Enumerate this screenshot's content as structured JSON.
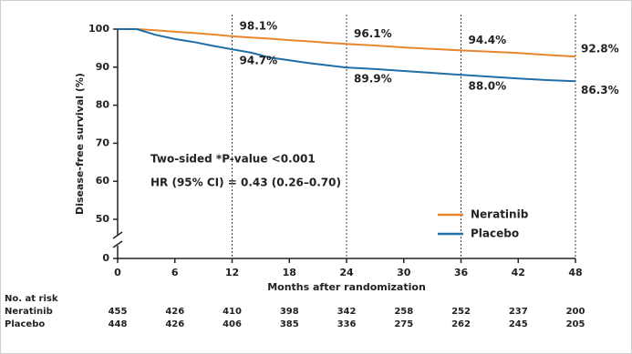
{
  "chart_data": {
    "type": "line",
    "xlabel": "Months after randomization",
    "ylabel": "Disease-free survival (%)",
    "x": [
      0,
      2,
      4,
      6,
      8,
      10,
      12,
      14,
      16,
      18,
      20,
      22,
      24,
      27,
      30,
      33,
      36,
      39,
      42,
      45,
      48
    ],
    "xlim": [
      0,
      48
    ],
    "xticks": [
      0,
      6,
      12,
      18,
      24,
      30,
      36,
      42,
      48
    ],
    "ylim": [
      0,
      100
    ],
    "yticks": [
      0,
      50,
      60,
      70,
      80,
      90,
      100
    ],
    "y_axis_break": true,
    "vlines": [
      12,
      24,
      36,
      48
    ],
    "legend": "lower right",
    "series": [
      {
        "name": "Neratinib",
        "color": "#e8862c",
        "values": [
          100,
          100,
          99.7,
          99.3,
          99.0,
          98.6,
          98.1,
          97.8,
          97.5,
          97.1,
          96.8,
          96.4,
          96.1,
          95.7,
          95.2,
          94.8,
          94.4,
          94.1,
          93.7,
          93.2,
          92.8
        ],
        "value_labels": [
          null,
          null,
          null,
          null,
          null,
          null,
          "98.1%",
          null,
          null,
          null,
          null,
          null,
          "96.1%",
          null,
          null,
          null,
          "94.4%",
          null,
          null,
          null,
          "92.8%"
        ]
      },
      {
        "name": "Placebo",
        "color": "#1f6ea6",
        "values": [
          100,
          100,
          98.5,
          97.4,
          96.6,
          95.6,
          94.7,
          93.8,
          92.5,
          91.8,
          91.1,
          90.5,
          89.9,
          89.5,
          89.0,
          88.5,
          88.0,
          87.5,
          87.0,
          86.6,
          86.3
        ],
        "value_labels": [
          null,
          null,
          null,
          null,
          null,
          null,
          "94.7%",
          null,
          null,
          null,
          null,
          null,
          "89.9%",
          null,
          null,
          null,
          "88.0%",
          null,
          null,
          null,
          "86.3%"
        ]
      }
    ],
    "annotations": [
      "Two-sided *P-value <0.001",
      "HR (95% CI) = 0.43 (0.26–0.70)"
    ],
    "risk_table": {
      "title": "No. at risk",
      "rows": [
        {
          "name": "Neratinib",
          "values": [
            455,
            426,
            410,
            398,
            342,
            258,
            252,
            237,
            200
          ]
        },
        {
          "name": "Placebo",
          "values": [
            448,
            426,
            406,
            385,
            336,
            275,
            262,
            245,
            205
          ]
        }
      ]
    }
  }
}
